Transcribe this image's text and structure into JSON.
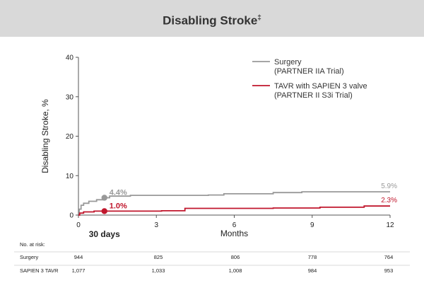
{
  "header": {
    "title": "Disabling Stroke",
    "title_mark": "‡"
  },
  "chart_data": {
    "type": "line",
    "xlabel": "Months",
    "ylabel": "Disabling Stroke, %",
    "xlim": [
      0,
      12
    ],
    "ylim": [
      0,
      40
    ],
    "x_ticks": [
      "0",
      "3",
      "6",
      "9",
      "12"
    ],
    "y_ticks": [
      "0",
      "10",
      "20",
      "30",
      "40"
    ],
    "x_marker_label": "30 days",
    "legend_position": "top-right",
    "series": [
      {
        "key": "surgery",
        "name": "Surgery",
        "name_sub": "(PARTNER IIA Trial)",
        "color": "#999999",
        "points": [
          [
            0,
            0
          ],
          [
            0.03,
            1.5
          ],
          [
            0.1,
            2.5
          ],
          [
            0.2,
            3.0
          ],
          [
            0.4,
            3.5
          ],
          [
            0.7,
            3.9
          ],
          [
            1,
            4.4
          ],
          [
            1.2,
            4.8
          ],
          [
            2,
            5.0
          ],
          [
            5,
            5.1
          ],
          [
            5.6,
            5.4
          ],
          [
            7.5,
            5.7
          ],
          [
            8.6,
            5.9
          ],
          [
            12,
            5.9
          ]
        ],
        "labels": [
          {
            "x": 1,
            "y": 4.4,
            "text": "4.4%",
            "marker": true
          },
          {
            "x": 12,
            "y": 5.9,
            "text": "5.9%",
            "marker": false
          }
        ]
      },
      {
        "key": "tavr",
        "name": "TAVR with SAPIEN 3 valve",
        "name_sub": "(PARTNER II S3i Trial)",
        "color": "#c0162c",
        "points": [
          [
            0,
            0
          ],
          [
            0.05,
            0.5
          ],
          [
            0.2,
            0.8
          ],
          [
            0.6,
            1.0
          ],
          [
            1,
            1.0
          ],
          [
            3.2,
            1.1
          ],
          [
            4.1,
            1.7
          ],
          [
            7.5,
            1.8
          ],
          [
            9.3,
            2.0
          ],
          [
            11,
            2.3
          ],
          [
            12,
            2.3
          ]
        ],
        "labels": [
          {
            "x": 1,
            "y": 1.0,
            "text": "1.0%",
            "marker": true
          },
          {
            "x": 12,
            "y": 2.3,
            "text": "2.3%",
            "marker": false
          }
        ]
      }
    ]
  },
  "risk_table": {
    "title": "No. at risk:",
    "rows": [
      {
        "label": "Surgery",
        "values": [
          "944",
          "825",
          "806",
          "778",
          "764"
        ]
      },
      {
        "label": "SAPIEN 3 TAVR",
        "values": [
          "1,077",
          "1,033",
          "1,008",
          "984",
          "953"
        ]
      }
    ]
  }
}
